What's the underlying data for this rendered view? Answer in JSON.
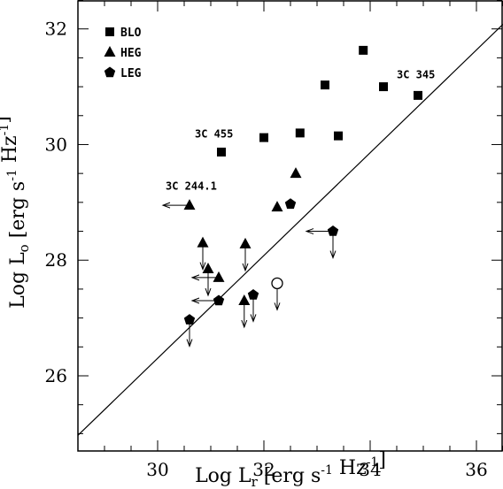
{
  "chart_data": {
    "type": "scatter",
    "xlabel": "Log L_r [erg s^-1 Hz^-1]",
    "ylabel": "Log L_o [erg s^-1 Hz^-1]",
    "xlim": [
      28.5,
      36.5
    ],
    "ylim": [
      24.7,
      32.5
    ],
    "x_ticks": [
      30,
      32,
      34,
      36
    ],
    "y_ticks": [
      26,
      28,
      30,
      32
    ],
    "grid": false,
    "legend": {
      "position": "top-left",
      "entries": [
        {
          "marker": "square",
          "label": "BLO"
        },
        {
          "marker": "triangle",
          "label": "HEG"
        },
        {
          "marker": "pentagon",
          "label": "LEG"
        }
      ]
    },
    "fit_line": {
      "x": [
        28.5,
        36.5
      ],
      "y": [
        24.97,
        32.08
      ]
    },
    "series": [
      {
        "name": "BLO",
        "marker": "square",
        "points": [
          {
            "x": 31.2,
            "y": 29.87
          },
          {
            "x": 32.0,
            "y": 30.12
          },
          {
            "x": 32.68,
            "y": 30.2
          },
          {
            "x": 33.15,
            "y": 31.03
          },
          {
            "x": 33.4,
            "y": 30.15
          },
          {
            "x": 33.87,
            "y": 31.63
          },
          {
            "x": 34.25,
            "y": 31.0
          },
          {
            "x": 34.9,
            "y": 30.85
          }
        ]
      },
      {
        "name": "HEG",
        "marker": "triangle",
        "points": [
          {
            "x": 30.6,
            "y": 28.95,
            "left": true
          },
          {
            "x": 30.85,
            "y": 28.3,
            "down": true
          },
          {
            "x": 30.95,
            "y": 27.85,
            "down": true
          },
          {
            "x": 31.15,
            "y": 27.7,
            "left": true
          },
          {
            "x": 31.65,
            "y": 28.28,
            "down": true
          },
          {
            "x": 31.63,
            "y": 27.3,
            "down": true
          },
          {
            "x": 32.6,
            "y": 29.5
          },
          {
            "x": 32.25,
            "y": 28.92
          }
        ]
      },
      {
        "name": "LEG",
        "marker": "pentagon",
        "points": [
          {
            "x": 30.6,
            "y": 26.97,
            "down": true
          },
          {
            "x": 31.15,
            "y": 27.3,
            "left": true
          },
          {
            "x": 31.8,
            "y": 27.4,
            "down": true
          },
          {
            "x": 32.5,
            "y": 28.97
          },
          {
            "x": 33.3,
            "y": 28.5,
            "left": true,
            "down": true
          }
        ]
      },
      {
        "marker": "open-circle",
        "points": [
          {
            "x": 32.25,
            "y": 27.6,
            "down": true
          }
        ]
      }
    ],
    "annotations": [
      {
        "text": "3C 455",
        "x": 30.7,
        "y": 30.12
      },
      {
        "text": "3C 244.1",
        "x": 30.15,
        "y": 29.22
      },
      {
        "text": "3C 345",
        "x": 34.5,
        "y": 31.15
      }
    ]
  }
}
